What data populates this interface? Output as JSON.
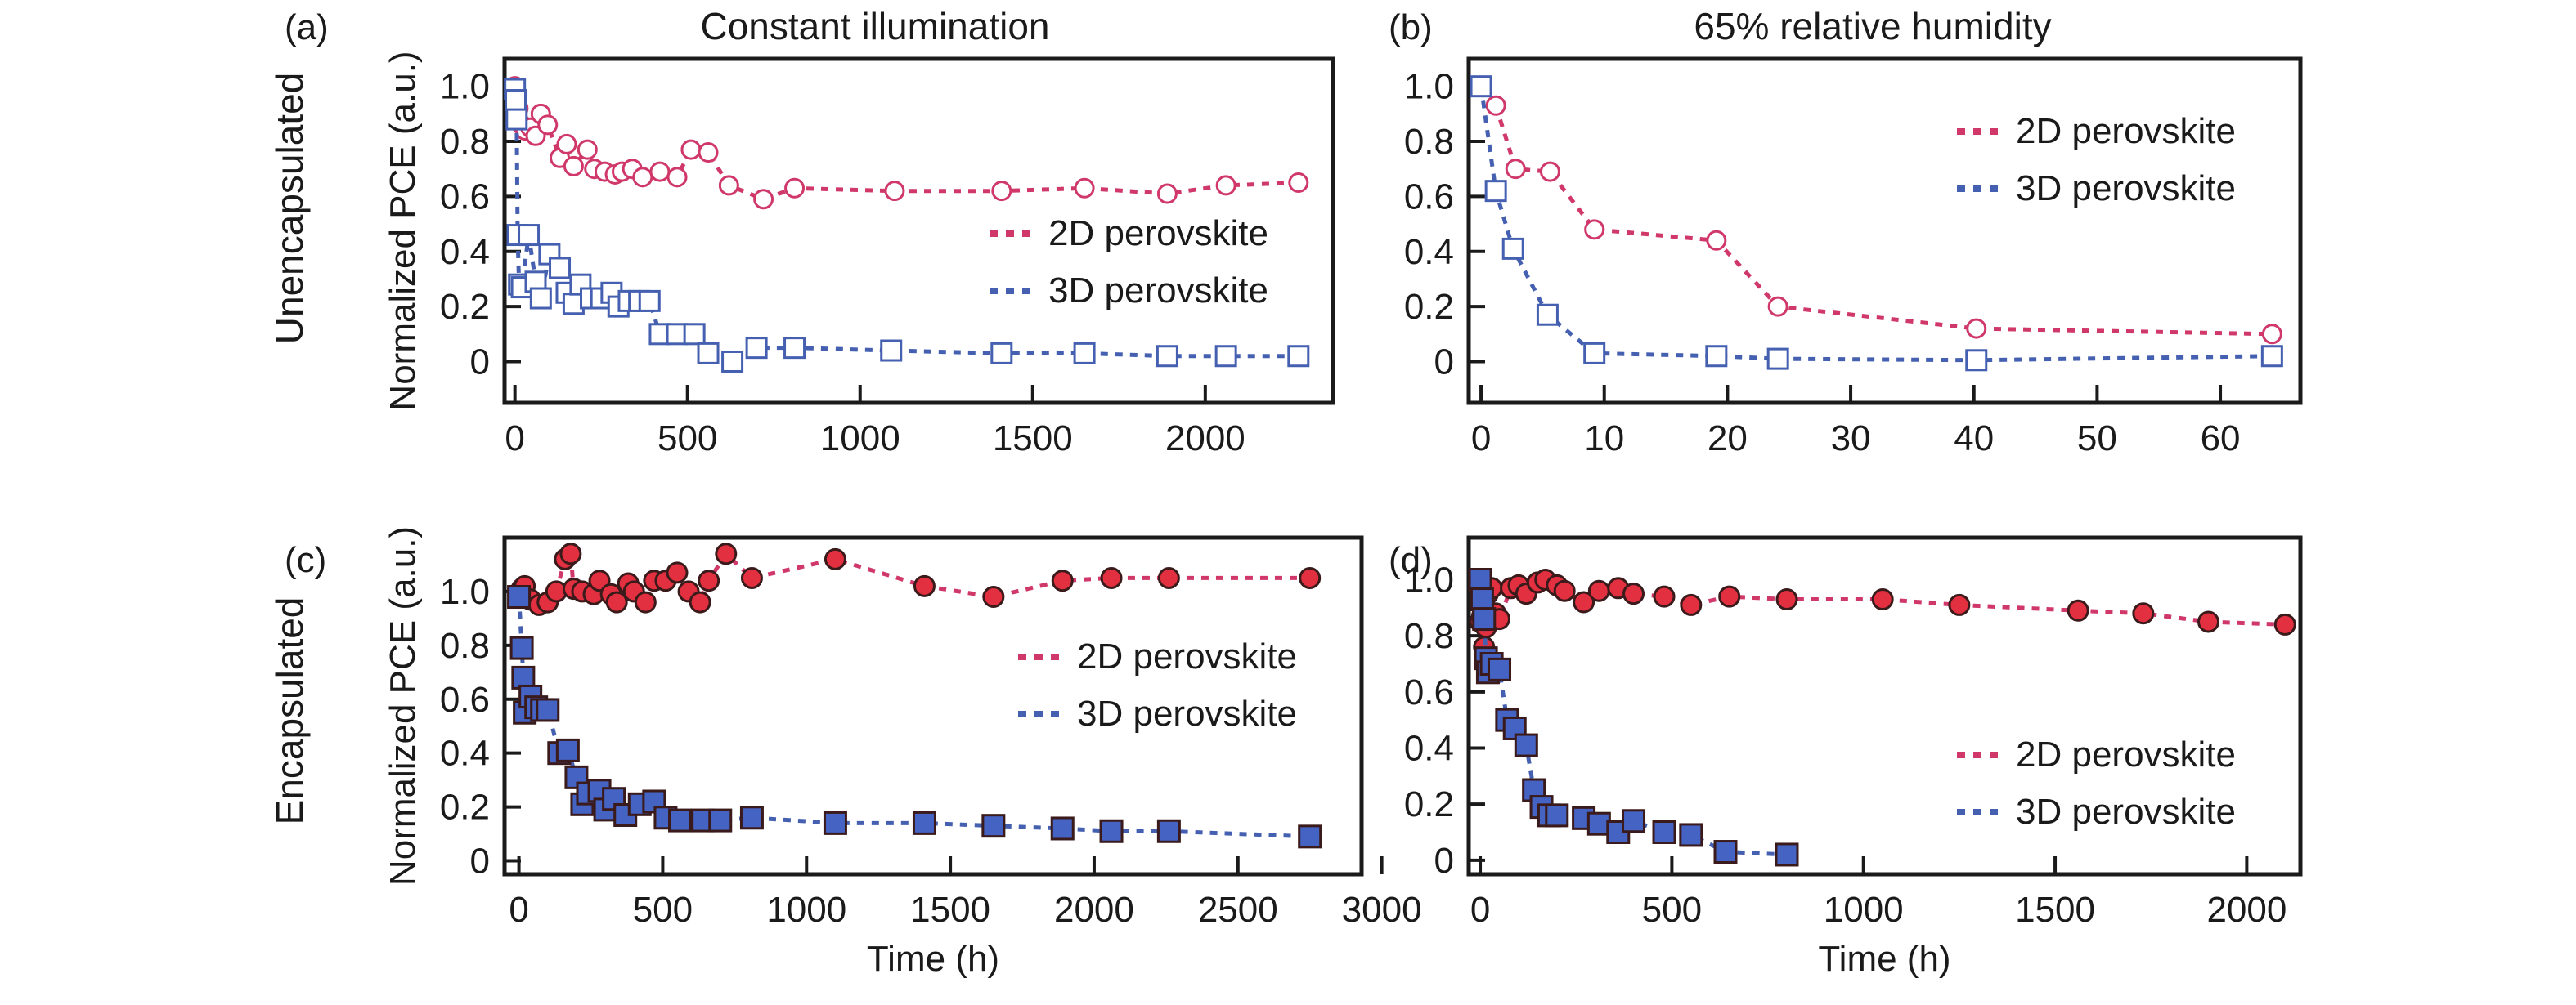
{
  "figure": {
    "row_titles": [
      "Unencapsulated",
      "Encapsulated"
    ],
    "column_titles": [
      "Constant illumination",
      "65% relative humidity"
    ],
    "colors": {
      "2D": "#d0386a",
      "3D": "#4560b0",
      "2D_fill": "#e23040",
      "3D_fill": "#4463c2",
      "edge_filled": "#3a1a1a"
    }
  },
  "chart_data": [
    {
      "id": "a",
      "panel_label": "(a)",
      "type": "line",
      "title": "Constant illumination",
      "row_title": "Unencapsulated",
      "xlabel": "",
      "ylabel": "Normalized PCE (a.u.)",
      "xlim": [
        -30,
        2370
      ],
      "ylim": [
        -0.15,
        1.1
      ],
      "xticks": [
        0,
        500,
        1000,
        1500,
        2000
      ],
      "xtick_labels": [
        "0",
        "500",
        "1000",
        "1500",
        "2000"
      ],
      "yticks": [
        0,
        0.2,
        0.4,
        0.6,
        0.8,
        1.0
      ],
      "ytick_labels": [
        "0",
        "0.2",
        "0.4",
        "0.6",
        "0.8",
        "1.0"
      ],
      "grid": false,
      "legend_position": "center-right",
      "markers_filled": false,
      "series": [
        {
          "name": "2D perovskite",
          "key": "2D",
          "marker": "circle",
          "x": [
            0,
            5,
            10,
            20,
            30,
            45,
            60,
            75,
            95,
            130,
            150,
            170,
            210,
            230,
            260,
            290,
            310,
            340,
            370,
            420,
            470,
            510,
            560,
            620,
            720,
            810,
            1100,
            1410,
            1650,
            1890,
            2060,
            2270
          ],
          "y": [
            1.0,
            0.96,
            0.92,
            0.86,
            0.84,
            0.85,
            0.82,
            0.9,
            0.86,
            0.74,
            0.79,
            0.71,
            0.77,
            0.7,
            0.69,
            0.68,
            0.69,
            0.7,
            0.67,
            0.69,
            0.67,
            0.77,
            0.76,
            0.64,
            0.59,
            0.63,
            0.62,
            0.62,
            0.63,
            0.61,
            0.64,
            0.65
          ]
        },
        {
          "name": "3D perovskite",
          "key": "3D",
          "marker": "square",
          "x": [
            0,
            2,
            5,
            8,
            12,
            20,
            40,
            60,
            75,
            100,
            130,
            150,
            170,
            190,
            220,
            250,
            280,
            300,
            330,
            360,
            390,
            420,
            470,
            520,
            560,
            630,
            700,
            810,
            1090,
            1410,
            1650,
            1890,
            2060,
            2270
          ],
          "y": [
            0.99,
            0.95,
            0.88,
            0.46,
            0.28,
            0.27,
            0.46,
            0.29,
            0.23,
            0.39,
            0.34,
            0.25,
            0.21,
            0.28,
            0.23,
            0.23,
            0.25,
            0.2,
            0.22,
            0.22,
            0.22,
            0.1,
            0.1,
            0.1,
            0.03,
            0.0,
            0.05,
            0.05,
            0.04,
            0.03,
            0.03,
            0.02,
            0.02,
            0.02
          ]
        }
      ]
    },
    {
      "id": "b",
      "panel_label": "(b)",
      "type": "line",
      "title": "65% relative humidity",
      "row_title": "",
      "xlabel": "",
      "ylabel": "",
      "xlim": [
        -1,
        66.5
      ],
      "ylim": [
        -0.15,
        1.1
      ],
      "xticks": [
        0,
        10,
        20,
        30,
        40,
        50,
        60
      ],
      "xtick_labels": [
        "0",
        "10",
        "20",
        "30",
        "40",
        "50",
        "60"
      ],
      "yticks": [
        0,
        0.2,
        0.4,
        0.6,
        0.8,
        1.0
      ],
      "ytick_labels": [
        "0",
        "0.2",
        "0.4",
        "0.6",
        "0.8",
        "1.0"
      ],
      "grid": false,
      "legend_position": "top-right",
      "markers_filled": false,
      "series": [
        {
          "name": "2D perovskite",
          "key": "2D",
          "marker": "circle",
          "x": [
            1.2,
            2.8,
            5.6,
            9.2,
            19.1,
            24.1,
            40.2,
            64.2
          ],
          "y": [
            0.93,
            0.7,
            0.69,
            0.48,
            0.44,
            0.2,
            0.12,
            0.1
          ]
        },
        {
          "name": "3D perovskite",
          "key": "3D",
          "marker": "square",
          "x": [
            0,
            1.2,
            2.6,
            5.4,
            9.2,
            19.1,
            24.1,
            40.2,
            64.2
          ],
          "y": [
            1.0,
            0.62,
            0.41,
            0.17,
            0.03,
            0.02,
            0.01,
            0.005,
            0.02
          ]
        }
      ]
    },
    {
      "id": "c",
      "panel_label": "(c)",
      "type": "line",
      "title": "",
      "row_title": "Encapsulated",
      "xlabel": "Time (h)",
      "ylabel": "Normalized PCE (a.u.)",
      "xlim": [
        -50,
        2930
      ],
      "ylim": [
        -0.05,
        1.2
      ],
      "xticks": [
        0,
        500,
        1000,
        1500,
        2000,
        2500,
        3000
      ],
      "xtick_labels": [
        "0",
        "500",
        "1000",
        "1500",
        "2000",
        "2500",
        "3000"
      ],
      "yticks": [
        0,
        0.2,
        0.4,
        0.6,
        0.8,
        1.0
      ],
      "ytick_labels": [
        "0",
        "0.2",
        "0.4",
        "0.6",
        "0.8",
        "1.0"
      ],
      "grid": false,
      "legend_position": "center-right",
      "markers_filled": true,
      "series": [
        {
          "name": "2D perovskite",
          "key": "2D",
          "marker": "circle",
          "x": [
            0,
            10,
            20,
            40,
            70,
            100,
            130,
            160,
            180,
            190,
            220,
            260,
            280,
            320,
            340,
            380,
            400,
            440,
            470,
            510,
            550,
            590,
            630,
            660,
            720,
            810,
            1100,
            1410,
            1650,
            1890,
            2060,
            2260,
            2750
          ],
          "y": [
            0.98,
            1.01,
            1.02,
            0.97,
            0.95,
            0.96,
            1.0,
            1.12,
            1.14,
            1.01,
            1.0,
            0.99,
            1.04,
            0.99,
            0.96,
            1.03,
            1.0,
            0.96,
            1.04,
            1.04,
            1.07,
            1.0,
            0.96,
            1.04,
            1.14,
            1.05,
            1.12,
            1.02,
            0.98,
            1.04,
            1.05,
            1.05,
            1.05
          ]
        },
        {
          "name": "3D perovskite",
          "key": "3D",
          "marker": "square",
          "x": [
            0,
            10,
            15,
            20,
            40,
            60,
            80,
            100,
            140,
            170,
            200,
            220,
            240,
            280,
            300,
            330,
            370,
            420,
            470,
            510,
            560,
            640,
            700,
            810,
            1100,
            1410,
            1650,
            1890,
            2060,
            2260,
            2750
          ],
          "y": [
            0.98,
            0.79,
            0.68,
            0.55,
            0.61,
            0.57,
            0.56,
            0.56,
            0.4,
            0.41,
            0.31,
            0.21,
            0.25,
            0.26,
            0.19,
            0.23,
            0.17,
            0.21,
            0.22,
            0.16,
            0.15,
            0.15,
            0.15,
            0.16,
            0.14,
            0.14,
            0.13,
            0.12,
            0.11,
            0.11,
            0.09
          ]
        }
      ]
    },
    {
      "id": "d",
      "panel_label": "(d)",
      "type": "line",
      "title": "",
      "row_title": "",
      "xlabel": "Time (h)",
      "ylabel": "",
      "xlim": [
        -30,
        2140
      ],
      "ylim": [
        -0.05,
        1.15
      ],
      "xticks": [
        0,
        500,
        1000,
        1500,
        2000
      ],
      "xtick_labels": [
        "0",
        "500",
        "1000",
        "1500",
        "2000"
      ],
      "yticks": [
        0,
        0.2,
        0.4,
        0.6,
        0.8,
        1.0
      ],
      "ytick_labels": [
        "0",
        "0.2",
        "0.4",
        "0.6",
        "0.8",
        "1.0"
      ],
      "grid": false,
      "legend_position": "bottom-right",
      "markers_filled": true,
      "series": [
        {
          "name": "2D perovskite",
          "key": "2D",
          "marker": "circle",
          "x": [
            0,
            5,
            10,
            15,
            20,
            30,
            40,
            50,
            80,
            100,
            120,
            150,
            170,
            200,
            220,
            270,
            310,
            360,
            400,
            480,
            550,
            650,
            800,
            1050,
            1250,
            1560,
            1730,
            1900,
            2100
          ],
          "y": [
            0.85,
            0.87,
            0.76,
            0.83,
            0.95,
            0.97,
            0.88,
            0.86,
            0.97,
            0.98,
            0.95,
            0.99,
            1.0,
            0.98,
            0.96,
            0.92,
            0.96,
            0.97,
            0.95,
            0.94,
            0.91,
            0.94,
            0.93,
            0.93,
            0.91,
            0.89,
            0.88,
            0.85,
            0.84
          ]
        },
        {
          "name": "3D perovskite",
          "key": "3D",
          "marker": "square",
          "x": [
            0,
            5,
            10,
            15,
            20,
            30,
            50,
            70,
            90,
            120,
            140,
            160,
            180,
            200,
            270,
            310,
            360,
            400,
            480,
            550,
            640,
            800
          ],
          "y": [
            1.0,
            0.93,
            0.86,
            0.72,
            0.67,
            0.7,
            0.68,
            0.5,
            0.47,
            0.41,
            0.25,
            0.19,
            0.16,
            0.16,
            0.15,
            0.13,
            0.1,
            0.14,
            0.1,
            0.09,
            0.03,
            0.02
          ]
        }
      ]
    }
  ]
}
